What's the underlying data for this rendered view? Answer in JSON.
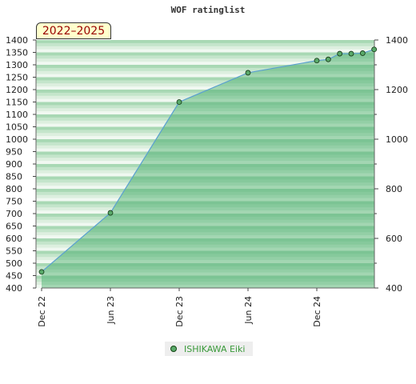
{
  "title": "WOF ratinglist",
  "badge": "2022–2025",
  "legend_label": "ISHIKAWA Eiki",
  "colors": {
    "fill": "#6fc08a",
    "line": "#5aa0d0",
    "marker": "#5aaa6a"
  },
  "chart_data": {
    "type": "area",
    "x_tick_labels": [
      "Dec 22",
      "Jun 23",
      "Dec 23",
      "Jun 24",
      "Dec 24"
    ],
    "x_tick_months": [
      0,
      6,
      12,
      18,
      24
    ],
    "x_range_months": [
      0,
      29.5
    ],
    "left_ylim": [
      400,
      1400
    ],
    "left_yticks": [
      400,
      450,
      500,
      550,
      600,
      650,
      700,
      750,
      800,
      850,
      900,
      950,
      1000,
      1050,
      1100,
      1150,
      1200,
      1250,
      1300,
      1350,
      1400
    ],
    "right_yticks": [
      400,
      600,
      800,
      1000,
      1200,
      1400
    ],
    "series": [
      {
        "name": "ISHIKAWA Eiki",
        "points": [
          {
            "month": 0,
            "rating": 465
          },
          {
            "month": 6,
            "rating": 703
          },
          {
            "month": 12,
            "rating": 1150
          },
          {
            "month": 18,
            "rating": 1268
          },
          {
            "month": 24,
            "rating": 1317
          },
          {
            "month": 25,
            "rating": 1322
          },
          {
            "month": 26,
            "rating": 1345
          },
          {
            "month": 27,
            "rating": 1345
          },
          {
            "month": 28,
            "rating": 1347
          },
          {
            "month": 29,
            "rating": 1362
          }
        ]
      }
    ]
  }
}
